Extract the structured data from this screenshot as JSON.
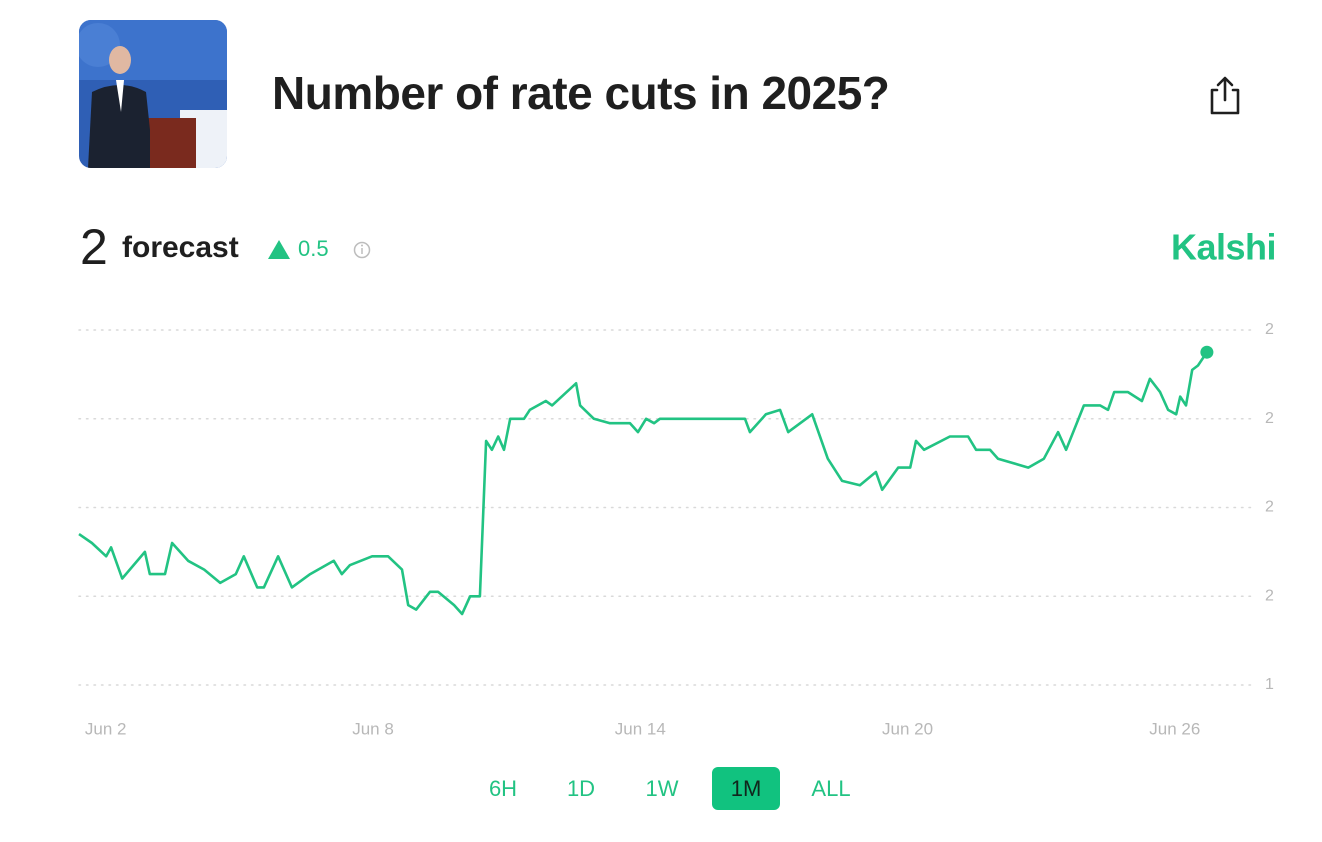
{
  "header": {
    "title": "Number of rate cuts in 2025?"
  },
  "forecast": {
    "value": "2",
    "label": "forecast",
    "change": "0.5",
    "source": "Kalshi"
  },
  "chart_data": {
    "type": "line",
    "x": [
      1.4,
      1.69,
      2.01,
      2.12,
      2.37,
      2.88,
      2.99,
      3.33,
      3.49,
      3.85,
      4.21,
      4.57,
      4.92,
      5.1,
      5.4,
      5.55,
      5.87,
      6.18,
      6.59,
      7.12,
      7.3,
      7.48,
      7.98,
      8.34,
      8.65,
      8.79,
      8.97,
      9.28,
      9.46,
      9.82,
      10.0,
      10.18,
      10.4,
      10.54,
      10.67,
      10.81,
      10.94,
      11.08,
      11.39,
      11.52,
      11.88,
      12.02,
      12.56,
      12.65,
      12.96,
      13.32,
      13.77,
      13.95,
      14.13,
      14.31,
      14.44,
      16.35,
      16.46,
      16.82,
      17.14,
      17.32,
      17.86,
      18.21,
      18.53,
      18.93,
      19.29,
      19.43,
      19.79,
      20.06,
      20.19,
      20.37,
      20.95,
      21.36,
      21.54,
      21.85,
      22.03,
      22.71,
      23.06,
      23.38,
      23.56,
      23.96,
      24.32,
      24.5,
      24.64,
      24.95,
      25.26,
      25.44,
      25.67,
      25.85,
      26.03,
      26.12,
      26.25,
      26.39,
      26.52,
      26.72
    ],
    "series": [
      {
        "color": "#22c383",
        "values": [
          1.74,
          1.72,
          1.69,
          1.71,
          1.64,
          1.7,
          1.65,
          1.65,
          1.72,
          1.68,
          1.66,
          1.63,
          1.65,
          1.69,
          1.62,
          1.62,
          1.69,
          1.62,
          1.65,
          1.68,
          1.65,
          1.67,
          1.69,
          1.69,
          1.66,
          1.58,
          1.57,
          1.61,
          1.61,
          1.58,
          1.56,
          1.6,
          1.6,
          1.95,
          1.93,
          1.96,
          1.93,
          2.0,
          2.0,
          2.02,
          2.04,
          2.03,
          2.08,
          2.03,
          2.0,
          1.99,
          1.99,
          1.97,
          2.0,
          1.99,
          2.0,
          2.0,
          1.97,
          2.01,
          2.02,
          1.97,
          2.01,
          1.91,
          1.86,
          1.85,
          1.88,
          1.84,
          1.89,
          1.89,
          1.95,
          1.93,
          1.96,
          1.96,
          1.93,
          1.93,
          1.91,
          1.89,
          1.91,
          1.97,
          1.93,
          2.03,
          2.03,
          2.02,
          2.06,
          2.06,
          2.04,
          2.09,
          2.06,
          2.02,
          2.01,
          2.05,
          2.03,
          2.11,
          2.12,
          2.15
        ]
      }
    ],
    "xlim": [
      1.4,
      27.8
    ],
    "xticks": [
      {
        "value": 2,
        "label": "Jun 2"
      },
      {
        "value": 8,
        "label": "Jun 8"
      },
      {
        "value": 14,
        "label": "Jun 14"
      },
      {
        "value": 20,
        "label": "Jun 20"
      },
      {
        "value": 26,
        "label": "Jun 26"
      }
    ],
    "ylim": [
      1.4,
      2.2
    ],
    "yticks": [
      {
        "value": 2.2,
        "label": "2"
      },
      {
        "value": 2.0,
        "label": "2"
      },
      {
        "value": 1.8,
        "label": "2"
      },
      {
        "value": 1.6,
        "label": "2"
      },
      {
        "value": 1.4,
        "label": "1"
      }
    ],
    "grid": true
  },
  "ranges": {
    "options": [
      "6H",
      "1D",
      "1W",
      "1M",
      "ALL"
    ],
    "active": "1M"
  }
}
